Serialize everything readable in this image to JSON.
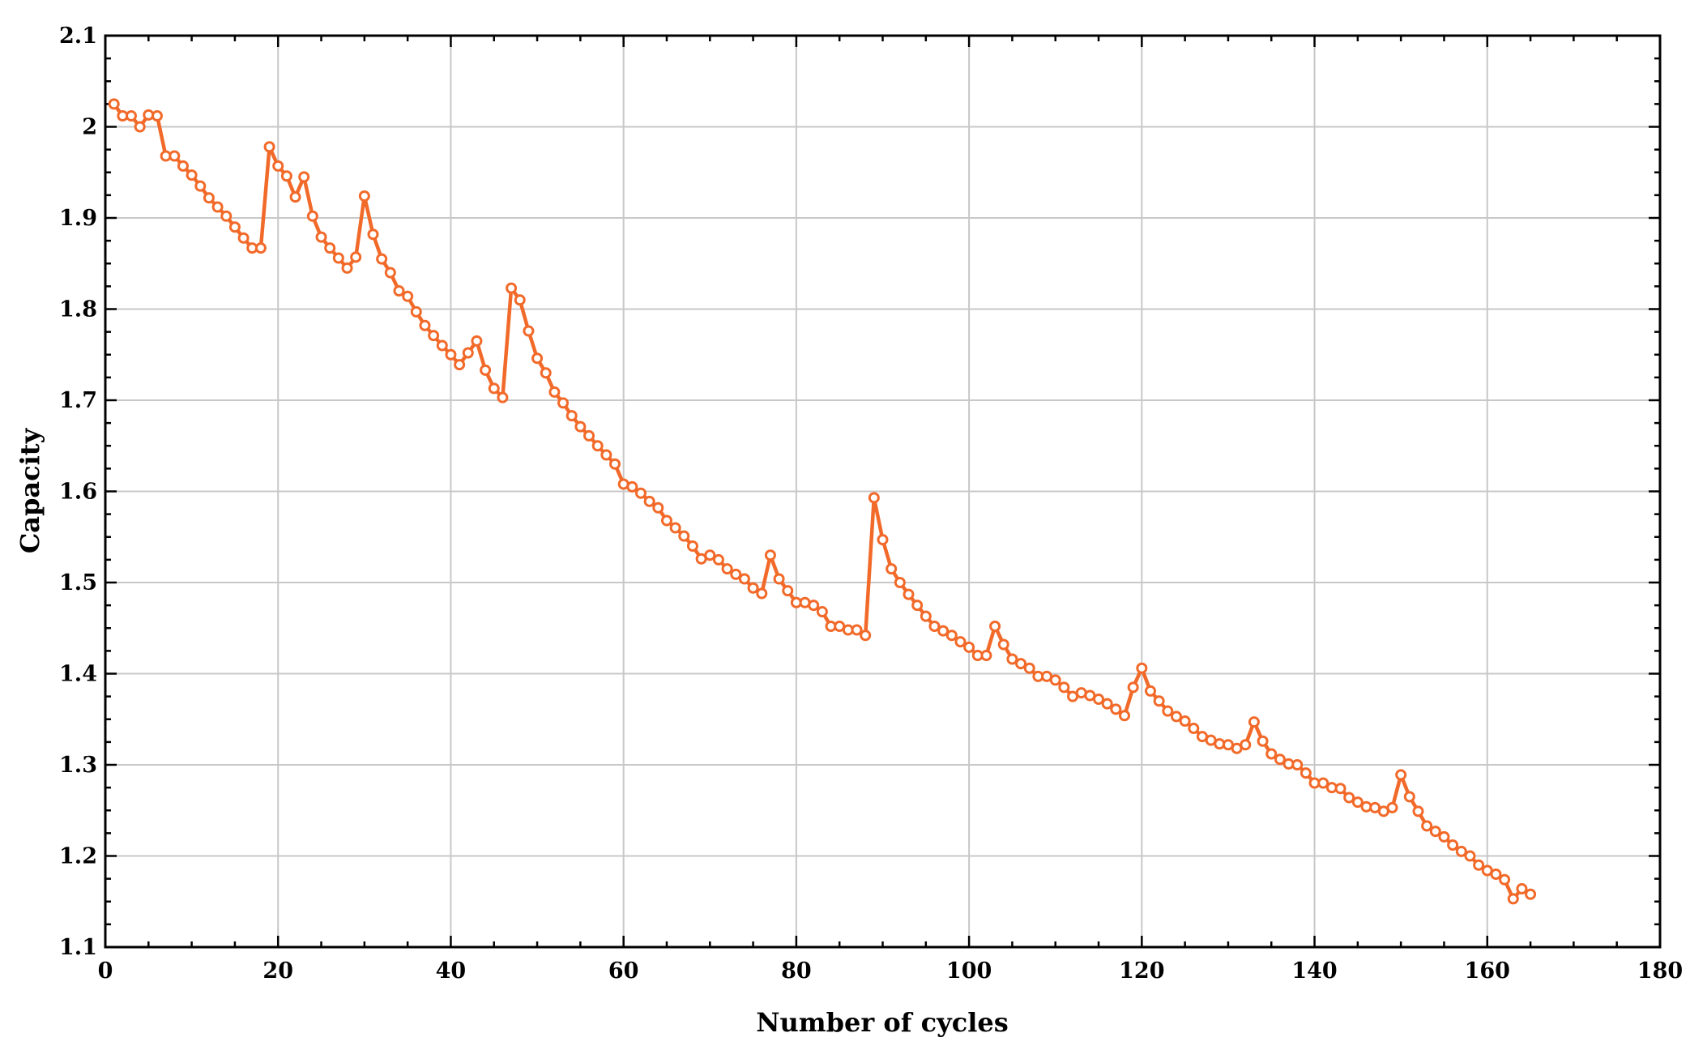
{
  "chart_data": {
    "type": "line",
    "title": "",
    "xlabel": "Number of cycles",
    "ylabel": "Capacity",
    "xlim": [
      0,
      180
    ],
    "ylim": [
      1.1,
      2.1
    ],
    "grid": true,
    "x_ticks": [
      "0",
      "20",
      "40",
      "60",
      "80",
      "100",
      "120",
      "140",
      "160",
      "180"
    ],
    "y_ticks": [
      "1.1",
      "1.2",
      "1.3",
      "1.4",
      "1.5",
      "1.6",
      "1.7",
      "1.8",
      "1.9",
      "2",
      "2.1"
    ],
    "series": [
      {
        "color": "#f26a2a",
        "marker": "circle",
        "x": [
          1,
          2,
          3,
          4,
          5,
          6,
          7,
          8,
          9,
          10,
          11,
          12,
          13,
          14,
          15,
          16,
          17,
          18,
          19,
          20,
          21,
          22,
          23,
          24,
          25,
          26,
          27,
          28,
          29,
          30,
          31,
          32,
          33,
          34,
          35,
          36,
          37,
          38,
          39,
          40,
          41,
          42,
          43,
          44,
          45,
          46,
          47,
          48,
          49,
          50,
          51,
          52,
          53,
          54,
          55,
          56,
          57,
          58,
          59,
          60,
          61,
          62,
          63,
          64,
          65,
          66,
          67,
          68,
          69,
          70,
          71,
          72,
          73,
          74,
          75,
          76,
          77,
          78,
          79,
          80,
          81,
          82,
          83,
          84,
          85,
          86,
          87,
          88,
          89,
          90,
          91,
          92,
          93,
          94,
          95,
          96,
          97,
          98,
          99,
          100,
          101,
          102,
          103,
          104,
          105,
          106,
          107,
          108,
          109,
          110,
          111,
          112,
          113,
          114,
          115,
          116,
          117,
          118,
          119,
          120,
          121,
          122,
          123,
          124,
          125,
          126,
          127,
          128,
          129,
          130,
          131,
          132,
          133,
          134,
          135,
          136,
          137,
          138,
          139,
          140,
          141,
          142,
          143,
          144,
          145,
          146,
          147,
          148,
          149,
          150,
          151,
          152,
          153,
          154,
          155,
          156,
          157,
          158,
          159,
          160,
          161,
          162,
          163,
          164,
          165
        ],
        "y": [
          2.025,
          2.012,
          2.012,
          2.0,
          2.013,
          2.012,
          1.968,
          1.968,
          1.957,
          1.947,
          1.935,
          1.922,
          1.912,
          1.902,
          1.89,
          1.878,
          1.867,
          1.867,
          1.978,
          1.957,
          1.946,
          1.923,
          1.945,
          1.902,
          1.879,
          1.867,
          1.856,
          1.845,
          1.857,
          1.924,
          1.882,
          1.855,
          1.84,
          1.82,
          1.814,
          1.797,
          1.782,
          1.771,
          1.76,
          1.75,
          1.739,
          1.752,
          1.765,
          1.733,
          1.713,
          1.703,
          1.823,
          1.81,
          1.776,
          1.746,
          1.73,
          1.709,
          1.697,
          1.683,
          1.671,
          1.661,
          1.65,
          1.64,
          1.63,
          1.608,
          1.605,
          1.598,
          1.589,
          1.582,
          1.568,
          1.56,
          1.551,
          1.54,
          1.526,
          1.53,
          1.525,
          1.515,
          1.509,
          1.504,
          1.494,
          1.488,
          1.53,
          1.504,
          1.491,
          1.478,
          1.478,
          1.475,
          1.468,
          1.452,
          1.452,
          1.448,
          1.448,
          1.442,
          1.593,
          1.547,
          1.515,
          1.5,
          1.487,
          1.475,
          1.463,
          1.452,
          1.447,
          1.442,
          1.435,
          1.429,
          1.42,
          1.42,
          1.452,
          1.432,
          1.416,
          1.411,
          1.406,
          1.397,
          1.397,
          1.393,
          1.385,
          1.375,
          1.379,
          1.376,
          1.372,
          1.367,
          1.361,
          1.354,
          1.385,
          1.406,
          1.381,
          1.37,
          1.359,
          1.353,
          1.348,
          1.34,
          1.331,
          1.327,
          1.323,
          1.322,
          1.318,
          1.322,
          1.347,
          1.326,
          1.312,
          1.306,
          1.301,
          1.3,
          1.291,
          1.28,
          1.28,
          1.275,
          1.274,
          1.264,
          1.259,
          1.254,
          1.253,
          1.249,
          1.253,
          1.289,
          1.265,
          1.249,
          1.233,
          1.227,
          1.221,
          1.212,
          1.205,
          1.2,
          1.19,
          1.184,
          1.18,
          1.174,
          1.153,
          1.164,
          1.158
        ]
      }
    ]
  }
}
